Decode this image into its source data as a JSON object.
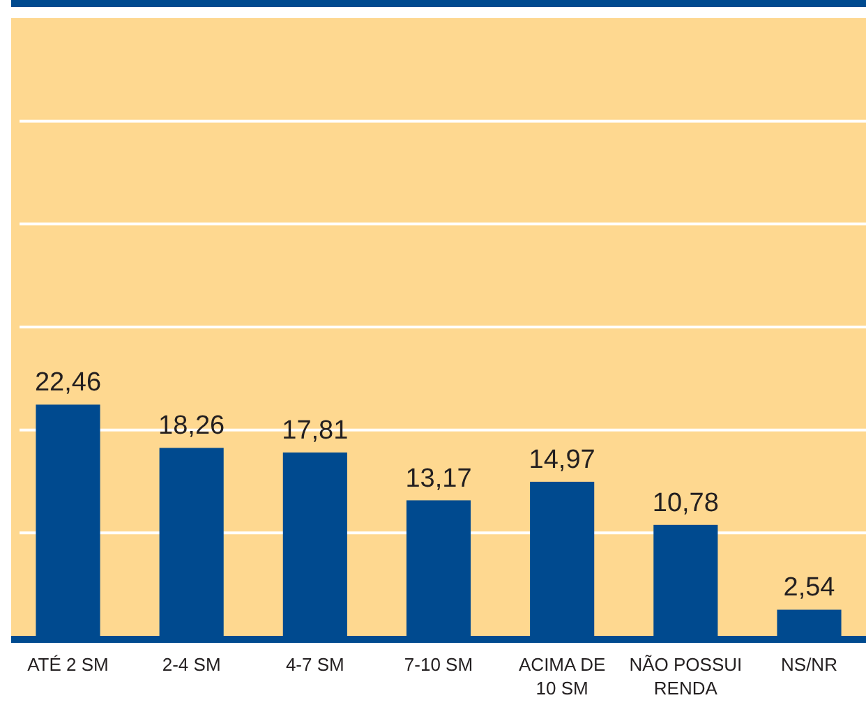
{
  "chart_data": {
    "type": "bar",
    "categories": [
      "ATÉ 2 SM",
      "2-4 SM",
      "4-7 SM",
      "7-10 SM",
      "ACIMA DE 10 SM",
      "NÃO POSSUI RENDA",
      "NS/NR"
    ],
    "values": [
      22.46,
      18.26,
      17.81,
      13.17,
      14.97,
      10.78,
      2.54
    ],
    "value_labels": [
      "22,46",
      "18,26",
      "17,81",
      "13,17",
      "14,97",
      "10,78",
      "2,54"
    ],
    "color": "#004a8f",
    "ylim": [
      0,
      60
    ],
    "yticks": [
      {
        "value": 10,
        "label": null
      },
      {
        "value": 20,
        "label": null
      },
      {
        "value": 30,
        "label": null
      },
      {
        "value": 40,
        "label": null
      },
      {
        "value": 50,
        "label": null
      }
    ],
    "grid": "y",
    "tick_labels": "x"
  }
}
